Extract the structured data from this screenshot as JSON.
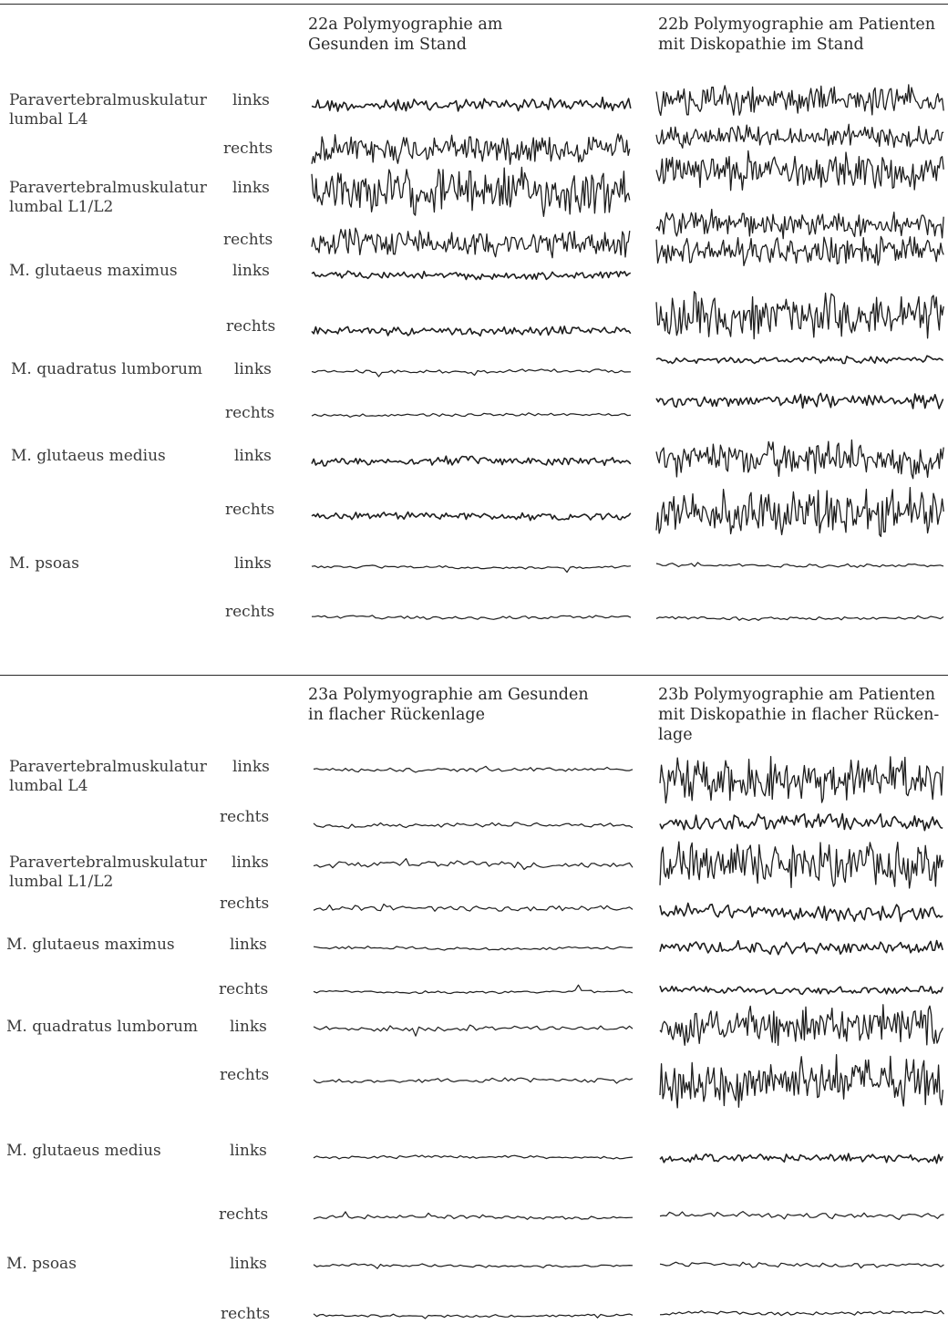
{
  "fig22": {
    "title_a": "22a Polymyographie am\nGesunden im Stand",
    "title_b": "22b Polymyographie am Patienten\nmit Diskopathie im Stand",
    "muscles": [
      "Paravertebralmuskulatur\nlumbal L4",
      "Paravertebralmuskulatur\nlumbal L1/L2",
      "M. glutaeus maximus",
      "M. quadratus lumborum",
      "M. glutaeus medius",
      "M. psoas"
    ],
    "sides": [
      "links",
      "rechts",
      "links",
      "rechts",
      "links",
      "rechts",
      "links",
      "rechts",
      "links",
      "rechts",
      "links",
      "rechts"
    ]
  },
  "fig23": {
    "title_a": "23a Polymyographie am Gesunden\nin flacher Rückenlage",
    "title_b": "23b Polymyographie am Patienten\nmit Diskopathie in flacher Rücken-\nlage",
    "muscles": [
      "Paravertebralmuskulatur\nlumbal L4",
      "Paravertebralmuskulatur\nlumbal L1/L2",
      "M. glutaeus maximus",
      "M. quadratus lumborum",
      "M. glutaeus medius",
      "M. psoas"
    ],
    "sides": [
      "links",
      "rechts",
      "links",
      "rechts",
      "links",
      "rechts",
      "links",
      "rechts",
      "links",
      "rechts",
      "links",
      "rechts"
    ]
  },
  "emg_activity": {
    "fig22a": [
      0.25,
      0.6,
      0.95,
      0.55,
      0.12,
      0.15,
      0.04,
      0.03,
      0.15,
      0.12,
      0.03,
      0.03
    ],
    "fig22b": [
      0.6,
      0.4,
      0.75,
      0.5,
      0.55,
      0.9,
      0.12,
      0.25,
      0.7,
      0.95,
      0.04,
      0.03
    ],
    "fig23a": [
      0.06,
      0.06,
      0.1,
      0.1,
      0.03,
      0.03,
      0.05,
      0.06,
      0.03,
      0.05,
      0.03,
      0.03
    ],
    "fig23b": [
      0.9,
      0.3,
      0.9,
      0.3,
      0.25,
      0.12,
      0.85,
      1.0,
      0.15,
      0.1,
      0.06,
      0.05
    ]
  }
}
